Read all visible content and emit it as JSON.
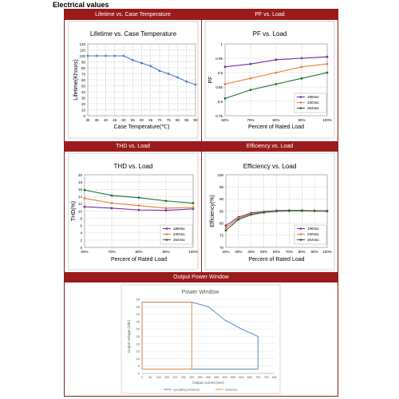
{
  "heading": "Electrical values",
  "panels": {
    "p1": "Lifetime vs. Case Temperature",
    "p2": "PF vs. Load",
    "p3": "THD vs. Load",
    "p4": "Efficiency vs. Load",
    "p5": "Output Power Window"
  },
  "chart_data": [
    {
      "type": "line",
      "title": "Lifetime vs. Case Temperature",
      "xlabel": "Case Temperature(℃)",
      "ylabel": "Lifetime(Khours)",
      "xlim": [
        30,
        90
      ],
      "ylim": [
        0,
        120
      ],
      "x_ticks": [
        "30",
        "35",
        "40",
        "45",
        "50",
        "55",
        "60",
        "65",
        "70",
        "75",
        "80",
        "85",
        "90"
      ],
      "y_ticks": [
        "0",
        "10",
        "20",
        "30",
        "40",
        "50",
        "60",
        "70",
        "80",
        "90",
        "100",
        "110",
        "120"
      ],
      "grid": true,
      "series": [
        {
          "x": [
            30,
            35,
            40,
            45,
            50,
            55,
            60,
            65,
            70,
            75,
            80,
            85,
            90
          ],
          "y": [
            100,
            100,
            100,
            100,
            100,
            93,
            88,
            83,
            75,
            70,
            64,
            57,
            52
          ],
          "color": "#4a7bc8"
        }
      ]
    },
    {
      "type": "line",
      "title": "PF vs. Load",
      "xlabel": "Percent of Rated Load",
      "ylabel": "PF",
      "x_ticks": [
        "60%",
        "70%",
        "80%",
        "90%",
        "100%"
      ],
      "y_ticks": [
        "0.75",
        "0.8",
        "0.85",
        "0.9",
        "0.95",
        "1"
      ],
      "ylim": [
        0.75,
        1
      ],
      "grid": true,
      "legend": "bottom-right",
      "series": [
        {
          "name": "198Vac",
          "color": "#7030a0",
          "y": [
            0.92,
            0.93,
            0.945,
            0.95,
            0.955
          ]
        },
        {
          "name": "230Vac",
          "color": "#ed7d31",
          "y": [
            0.86,
            0.88,
            0.9,
            0.92,
            0.93
          ]
        },
        {
          "name": "264Vac",
          "color": "#1e6b2e",
          "y": [
            0.81,
            0.84,
            0.86,
            0.88,
            0.9
          ]
        }
      ]
    },
    {
      "type": "line",
      "title": "THD vs. Load",
      "xlabel": "Percent of Rated Load",
      "ylabel": "THD(%)",
      "x_ticks": [
        "60%",
        "70%",
        "80%",
        "90%",
        "100%"
      ],
      "y_ticks": [
        "0",
        "2",
        "4",
        "6",
        "8",
        "10",
        "12",
        "14",
        "16",
        "18",
        "20"
      ],
      "ylim": [
        0,
        20
      ],
      "grid": true,
      "legend": "bottom-right",
      "series": [
        {
          "name": "198Vac",
          "color": "#7030a0",
          "y": [
            11.2,
            10.8,
            10.3,
            10.2,
            10.6
          ]
        },
        {
          "name": "230Vac",
          "color": "#ed7d31",
          "y": [
            13.5,
            12.2,
            11.5,
            10.8,
            11.0
          ]
        },
        {
          "name": "264Vac",
          "color": "#1e6b2e",
          "y": [
            15.8,
            14.3,
            13.7,
            12.8,
            12.2
          ]
        }
      ]
    },
    {
      "type": "line",
      "title": "Efficiency vs. Load",
      "xlabel": "Percent of Rated Load",
      "ylabel": "Efficiency(%)",
      "x_ticks": [
        "20%",
        "30%",
        "40%",
        "50%",
        "60%",
        "70%",
        "80%",
        "90%",
        "100%"
      ],
      "y_ticks": [
        "70",
        "75",
        "80",
        "85",
        "90",
        "95",
        "100"
      ],
      "ylim": [
        70,
        100
      ],
      "grid": true,
      "legend": "bottom-right",
      "series": [
        {
          "name": "198Vac",
          "color": "#7030a0",
          "y": [
            79,
            82.5,
            84.2,
            84.8,
            85.2,
            85.3,
            85.3,
            85.2,
            85.1
          ]
        },
        {
          "name": "230Vac",
          "color": "#ed7d31",
          "y": [
            78,
            82,
            83.8,
            84.6,
            85.0,
            85.2,
            85.2,
            85.1,
            85.0
          ]
        },
        {
          "name": "264Vac",
          "color": "#1e6b2e",
          "y": [
            77,
            81.5,
            83.5,
            84.4,
            84.9,
            85.1,
            85.1,
            85.0,
            84.9
          ]
        }
      ]
    },
    {
      "type": "area",
      "title": "Power Window",
      "xlabel": "Output current (mA)",
      "ylabel": "Output voltage (Vdc)",
      "xlim": [
        0,
        800
      ],
      "ylim": [
        0,
        50
      ],
      "x_ticks": [
        "0",
        "50",
        "100",
        "150",
        "200",
        "250",
        "300",
        "350",
        "400",
        "450",
        "500",
        "550",
        "600",
        "650",
        "700",
        "750",
        "800"
      ],
      "y_ticks": [
        "0",
        "5",
        "10",
        "15",
        "20",
        "25",
        "30",
        "35",
        "40",
        "45",
        "50"
      ],
      "legend": "bottom",
      "series": [
        {
          "name": "operating windows",
          "color": "#4a7bc8",
          "x": [
            0,
            300,
            400,
            500,
            600,
            700,
            700,
            0,
            0
          ],
          "y": [
            48,
            48,
            45,
            36,
            30,
            25,
            3,
            3,
            48
          ]
        },
        {
          "name": "Dimmed",
          "color": "#ed7d31",
          "x": [
            0,
            300,
            300,
            0,
            0
          ],
          "y": [
            48,
            48,
            3,
            3,
            48
          ]
        }
      ]
    }
  ]
}
